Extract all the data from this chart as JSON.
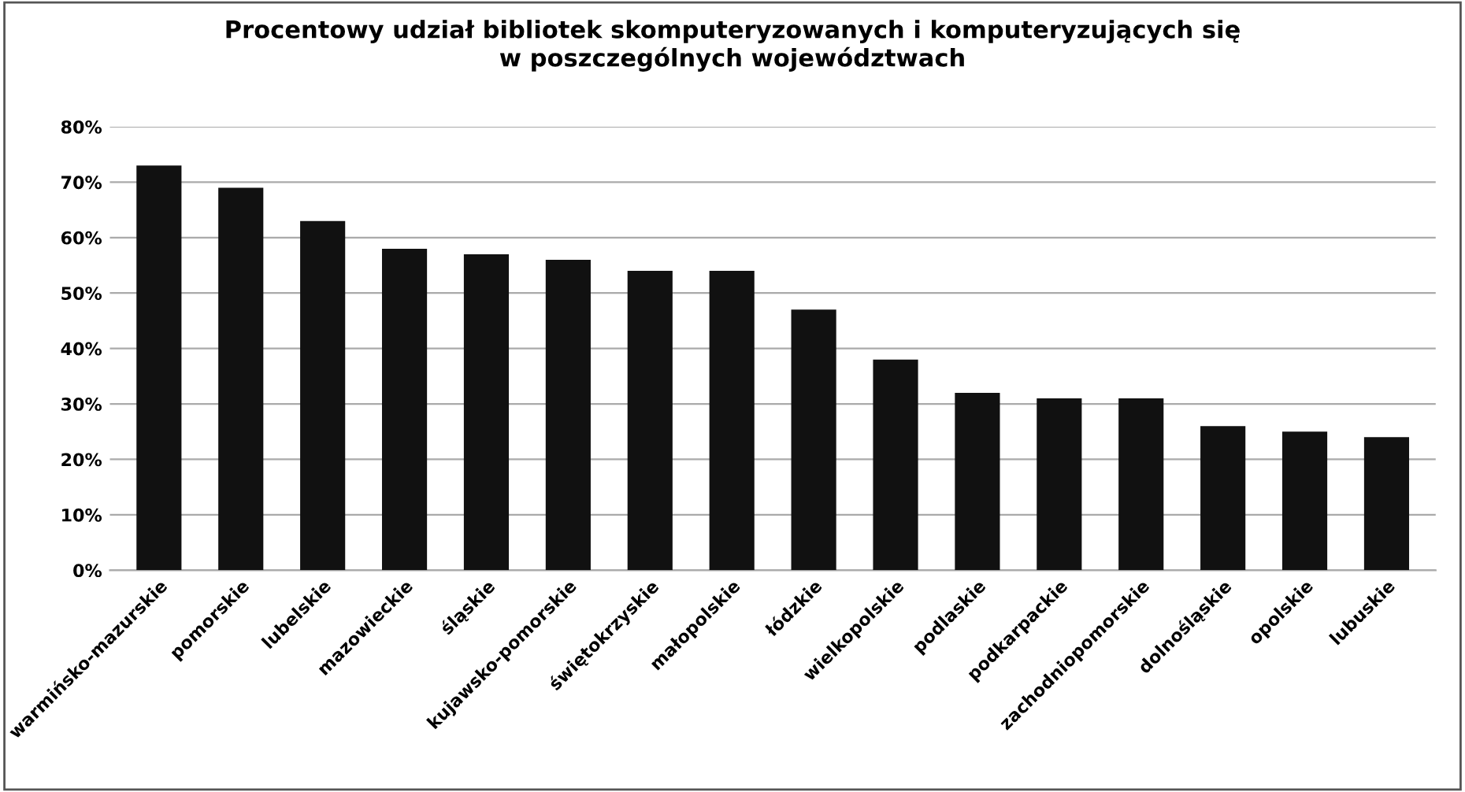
{
  "chart_data": {
    "type": "bar",
    "title": "Procentowy udział bibliotek skomputeryzowanych i komputeryzujących się\nw poszczególnych województwach",
    "categories": [
      "warmińsko-mazurskie",
      "pomorskie",
      "lubelskie",
      "mazowieckie",
      "śląskie",
      "kujawsko-pomorskie",
      "świętokrzyskie",
      "małopolskie",
      "łódzkie",
      "wielkopolskie",
      "podlaskie",
      "podkarpackie",
      "zachodniopomorskie",
      "dolnośląskie",
      "opolskie",
      "lubuskie"
    ],
    "values": [
      73,
      69,
      63,
      58,
      57,
      56,
      54,
      54,
      47,
      38,
      32,
      31,
      31,
      26,
      25,
      24
    ],
    "color": "#111111",
    "ylim": [
      0,
      80
    ],
    "yticks": [
      {
        "value": 0,
        "label": "0%"
      },
      {
        "value": 10,
        "label": "10%"
      },
      {
        "value": 20,
        "label": "20%"
      },
      {
        "value": 30,
        "label": "30%"
      },
      {
        "value": 40,
        "label": "40%"
      },
      {
        "value": 50,
        "label": "50%"
      },
      {
        "value": 60,
        "label": "60%"
      },
      {
        "value": 70,
        "label": "70%"
      },
      {
        "value": 80,
        "label": "80%"
      }
    ],
    "grid": "y",
    "legend": false
  }
}
